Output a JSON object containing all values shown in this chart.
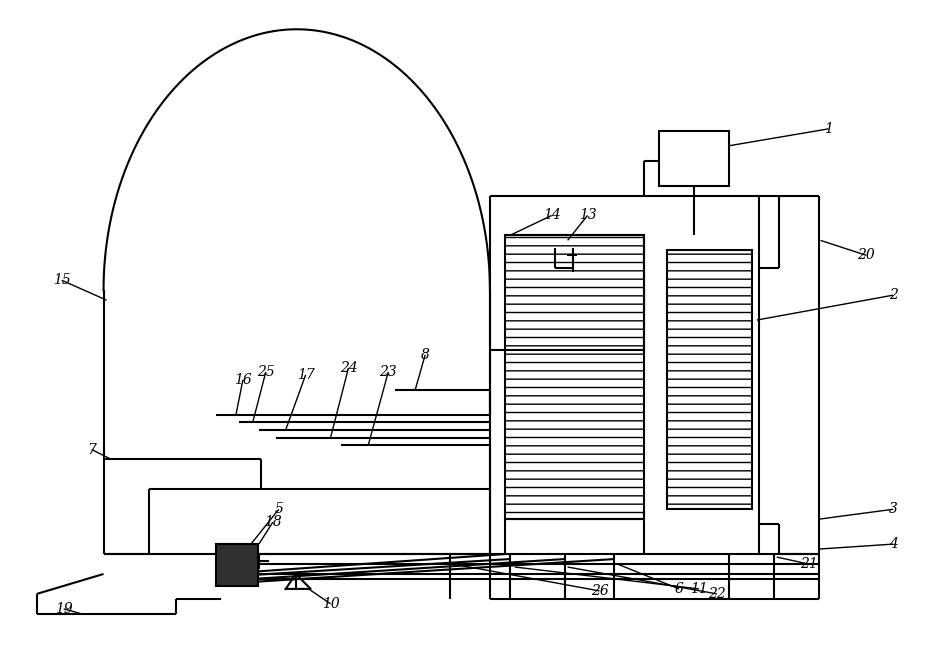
{
  "bg_color": "#ffffff",
  "line_color": "#000000",
  "fig_width": 9.35,
  "fig_height": 6.64,
  "dpi": 100
}
